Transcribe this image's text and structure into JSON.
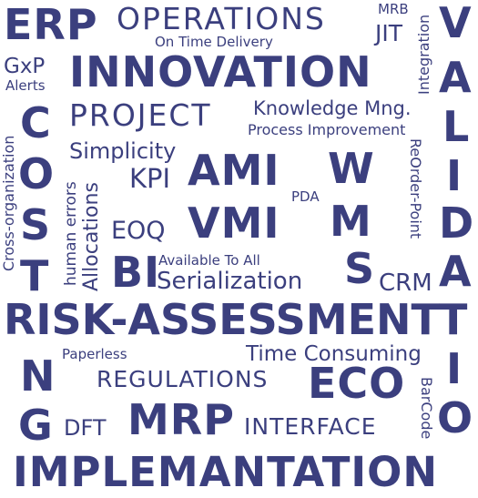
{
  "theme": {
    "text_color": "#3b3f7e",
    "background": "#ffffff"
  },
  "words": {
    "erp": "ERP",
    "operations": "OPERATIONS",
    "mrb": "MRB",
    "jit": "JIT",
    "on_time_delivery": "On Time Delivery",
    "gxp": "GxP",
    "alerts": "Alerts",
    "innovation": "INNOVATION",
    "integration": "Integration",
    "valida_letters": [
      "V",
      "A",
      "L",
      "I",
      "D",
      "A",
      "T",
      "I",
      "O"
    ],
    "cross_organization": "Cross-organization",
    "cost_letters": [
      "C",
      "O",
      "S",
      "T",
      "I",
      "N",
      "G"
    ],
    "project": "PROJECT",
    "knowledge_mng": "Knowledge Mng.",
    "process_improvement": "Process Improvement",
    "simplicity": "Simplicity",
    "reorder_point": "ReOrder-Point",
    "kpi": "KPI",
    "ami": "AMI",
    "w": "W",
    "m": "M",
    "s": "S",
    "pda": "PDA",
    "human_errors": "human errors",
    "allocations": "Allocations",
    "eoq": "EOQ",
    "vmi": "VMI",
    "bi": "BI",
    "available_to_all": "Available To All",
    "serialization": "Serialization",
    "crm": "CRM",
    "risk_assessment": "RISK-ASSESSMENT",
    "paperless": "Paperless",
    "time_consuming": "Time Consuming",
    "regulations": "REGULATIONS",
    "eco": "ECO",
    "barcode": "BarCode",
    "dft": "DFT",
    "mrp": "MRP",
    "interface": "INTERFACE",
    "implementation": "IMPLEMANTATION"
  }
}
